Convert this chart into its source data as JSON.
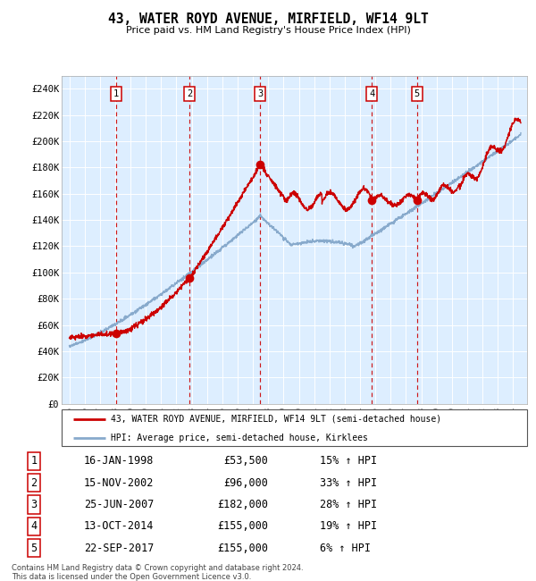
{
  "title": "43, WATER ROYD AVENUE, MIRFIELD, WF14 9LT",
  "subtitle": "Price paid vs. HM Land Registry's House Price Index (HPI)",
  "legend_line1": "43, WATER ROYD AVENUE, MIRFIELD, WF14 9LT (semi-detached house)",
  "legend_line2": "HPI: Average price, semi-detached house, Kirklees",
  "footer1": "Contains HM Land Registry data © Crown copyright and database right 2024.",
  "footer2": "This data is licensed under the Open Government Licence v3.0.",
  "red_color": "#cc0000",
  "blue_color": "#88aacc",
  "bg_color": "#ddeeff",
  "transactions": [
    {
      "num": 1,
      "date": "16-JAN-1998",
      "price": 53500,
      "price_str": "£53,500",
      "pct": "15%",
      "dir": "↑",
      "year": 1998.04
    },
    {
      "num": 2,
      "date": "15-NOV-2002",
      "price": 96000,
      "price_str": "£96,000",
      "pct": "33%",
      "dir": "↑",
      "year": 2002.87
    },
    {
      "num": 3,
      "date": "25-JUN-2007",
      "price": 182000,
      "price_str": "£182,000",
      "pct": "28%",
      "dir": "↑",
      "year": 2007.48
    },
    {
      "num": 4,
      "date": "13-OCT-2014",
      "price": 155000,
      "price_str": "£155,000",
      "pct": "19%",
      "dir": "↑",
      "year": 2014.78
    },
    {
      "num": 5,
      "date": "22-SEP-2017",
      "price": 155000,
      "price_str": "£155,000",
      "pct": "6%",
      "dir": "↑",
      "year": 2017.72
    }
  ],
  "ylim": [
    0,
    250000
  ],
  "ytick_vals": [
    0,
    20000,
    40000,
    60000,
    80000,
    100000,
    120000,
    140000,
    160000,
    180000,
    200000,
    220000,
    240000
  ],
  "ytick_labels": [
    "£0",
    "£20K",
    "£40K",
    "£60K",
    "£80K",
    "£100K",
    "£120K",
    "£140K",
    "£160K",
    "£180K",
    "£200K",
    "£220K",
    "£240K"
  ],
  "xlim_start": 1994.5,
  "xlim_end": 2024.9,
  "xtick_years": [
    1995,
    1996,
    1997,
    1998,
    1999,
    2000,
    2001,
    2002,
    2003,
    2004,
    2005,
    2006,
    2007,
    2008,
    2009,
    2010,
    2011,
    2012,
    2013,
    2014,
    2015,
    2016,
    2017,
    2018,
    2019,
    2020,
    2021,
    2022,
    2023,
    2024
  ]
}
